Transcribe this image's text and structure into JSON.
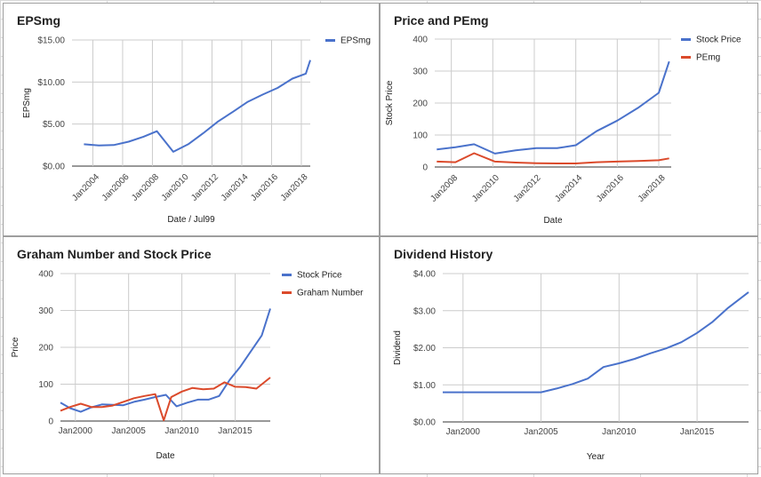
{
  "chart_data": [
    {
      "id": "eps",
      "type": "line",
      "title": "EPSmg",
      "xlabel": "Date / Jul99",
      "ylabel": "EPSmg",
      "xlim": [
        2002.6,
        2018.6
      ],
      "ylim": [
        0,
        15
      ],
      "y_ticks": [
        {
          "v": 0,
          "label": "$0.00"
        },
        {
          "v": 5,
          "label": "$5.00"
        },
        {
          "v": 10,
          "label": "$10.00"
        },
        {
          "v": 15,
          "label": "$15.00"
        }
      ],
      "x_ticks": [
        {
          "v": 2004,
          "label": "Jan2004"
        },
        {
          "v": 2006,
          "label": "Jan2006"
        },
        {
          "v": 2008,
          "label": "Jan2008"
        },
        {
          "v": 2010,
          "label": "Jan2010"
        },
        {
          "v": 2012,
          "label": "Jan2012"
        },
        {
          "v": 2014,
          "label": "Jan2014"
        },
        {
          "v": 2016,
          "label": "Jan2016"
        },
        {
          "v": 2018,
          "label": "Jan2018"
        }
      ],
      "x_tick_rotate": true,
      "legend": "right",
      "series": [
        {
          "name": "EPSmg",
          "color": "#4a72cb",
          "points": [
            [
              2003.4,
              2.6
            ],
            [
              2004.4,
              2.45
            ],
            [
              2005.4,
              2.5
            ],
            [
              2006.4,
              2.9
            ],
            [
              2007.4,
              3.5
            ],
            [
              2008.3,
              4.15
            ],
            [
              2009.4,
              1.7
            ],
            [
              2010.4,
              2.6
            ],
            [
              2011.4,
              3.9
            ],
            [
              2012.4,
              5.3
            ],
            [
              2013.4,
              6.45
            ],
            [
              2014.4,
              7.65
            ],
            [
              2015.4,
              8.5
            ],
            [
              2016.4,
              9.3
            ],
            [
              2017.4,
              10.4
            ],
            [
              2018.3,
              11.0
            ],
            [
              2018.6,
              12.6
            ]
          ]
        }
      ]
    },
    {
      "id": "pe",
      "type": "line",
      "title": "Price and PEmg",
      "xlabel": "Date",
      "ylabel": "Stock Price",
      "xlim": [
        2007.2,
        2018.6
      ],
      "ylim": [
        0,
        400
      ],
      "y_ticks": [
        {
          "v": 0,
          "label": "0"
        },
        {
          "v": 100,
          "label": "100"
        },
        {
          "v": 200,
          "label": "200"
        },
        {
          "v": 300,
          "label": "300"
        },
        {
          "v": 400,
          "label": "400"
        }
      ],
      "x_ticks": [
        {
          "v": 2008,
          "label": "Jan2008"
        },
        {
          "v": 2010,
          "label": "Jan2010"
        },
        {
          "v": 2012,
          "label": "Jan2012"
        },
        {
          "v": 2014,
          "label": "Jan2014"
        },
        {
          "v": 2016,
          "label": "Jan2016"
        },
        {
          "v": 2018,
          "label": "Jan2018"
        }
      ],
      "x_tick_rotate": true,
      "legend": "right",
      "series": [
        {
          "name": "Stock Price",
          "color": "#4a72cb",
          "points": [
            [
              2007.3,
              55
            ],
            [
              2008.2,
              62
            ],
            [
              2009.1,
              71
            ],
            [
              2010.1,
              42
            ],
            [
              2011.1,
              52
            ],
            [
              2012.1,
              59
            ],
            [
              2013.1,
              59
            ],
            [
              2014.0,
              68
            ],
            [
              2015.0,
              112
            ],
            [
              2016.0,
              145
            ],
            [
              2017.0,
              185
            ],
            [
              2018.0,
              232
            ],
            [
              2018.5,
              330
            ]
          ]
        },
        {
          "name": "PEmg",
          "color": "#db4a2b",
          "points": [
            [
              2007.3,
              17
            ],
            [
              2008.2,
              15
            ],
            [
              2009.1,
              43
            ],
            [
              2010.1,
              17
            ],
            [
              2011.1,
              14
            ],
            [
              2012.1,
              12
            ],
            [
              2013.1,
              11
            ],
            [
              2014.0,
              11
            ],
            [
              2015.0,
              15
            ],
            [
              2016.0,
              17
            ],
            [
              2017.0,
              19
            ],
            [
              2018.0,
              21
            ],
            [
              2018.5,
              27
            ]
          ]
        }
      ]
    },
    {
      "id": "graham",
      "type": "line",
      "title": "Graham Number and Stock Price",
      "xlabel": "Date",
      "ylabel": "Price",
      "xlim": [
        1998.6,
        2018.3
      ],
      "ylim": [
        0,
        400
      ],
      "y_ticks": [
        {
          "v": 0,
          "label": "0"
        },
        {
          "v": 100,
          "label": "100"
        },
        {
          "v": 200,
          "label": "200"
        },
        {
          "v": 300,
          "label": "300"
        },
        {
          "v": 400,
          "label": "400"
        }
      ],
      "x_ticks": [
        {
          "v": 2000,
          "label": "Jan2000"
        },
        {
          "v": 2005,
          "label": "Jan2005"
        },
        {
          "v": 2010,
          "label": "Jan2010"
        },
        {
          "v": 2015,
          "label": "Jan2015"
        }
      ],
      "x_tick_rotate": false,
      "legend": "right",
      "series": [
        {
          "name": "Stock Price",
          "color": "#4a72cb",
          "points": [
            [
              1998.6,
              50
            ],
            [
              1999.5,
              35
            ],
            [
              2000.5,
              25
            ],
            [
              2001.5,
              37
            ],
            [
              2002.5,
              45
            ],
            [
              2003.5,
              44
            ],
            [
              2004.5,
              43
            ],
            [
              2005.5,
              52
            ],
            [
              2006.5,
              58
            ],
            [
              2007.5,
              65
            ],
            [
              2008.5,
              71
            ],
            [
              2009.5,
              40
            ],
            [
              2010.5,
              50
            ],
            [
              2011.5,
              58
            ],
            [
              2012.5,
              58
            ],
            [
              2013.5,
              68
            ],
            [
              2014.5,
              112
            ],
            [
              2015.5,
              148
            ],
            [
              2016.5,
              190
            ],
            [
              2017.5,
              232
            ],
            [
              2018.3,
              305
            ]
          ]
        },
        {
          "name": "Graham Number",
          "color": "#db4a2b",
          "points": [
            [
              1998.6,
              28
            ],
            [
              1999.5,
              38
            ],
            [
              2000.5,
              47
            ],
            [
              2001.5,
              38
            ],
            [
              2002.5,
              38
            ],
            [
              2003.5,
              42
            ],
            [
              2004.5,
              52
            ],
            [
              2005.5,
              62
            ],
            [
              2006.5,
              68
            ],
            [
              2007.5,
              73
            ],
            [
              2008.3,
              2
            ],
            [
              2009.0,
              65
            ],
            [
              2010.0,
              80
            ],
            [
              2011.0,
              90
            ],
            [
              2012.0,
              86
            ],
            [
              2013.0,
              88
            ],
            [
              2014.0,
              105
            ],
            [
              2015.0,
              93
            ],
            [
              2016.0,
              92
            ],
            [
              2017.0,
              88
            ],
            [
              2018.3,
              118
            ]
          ]
        }
      ]
    },
    {
      "id": "dividend",
      "type": "line",
      "title": "Dividend History",
      "xlabel": "Year",
      "ylabel": "Dividend",
      "xlim": [
        1998.7,
        2018.3
      ],
      "ylim": [
        0,
        4
      ],
      "y_ticks": [
        {
          "v": 0,
          "label": "$0.00"
        },
        {
          "v": 1,
          "label": "$1.00"
        },
        {
          "v": 2,
          "label": "$2.00"
        },
        {
          "v": 3,
          "label": "$3.00"
        },
        {
          "v": 4,
          "label": "$4.00"
        }
      ],
      "x_ticks": [
        {
          "v": 2000,
          "label": "Jan2000"
        },
        {
          "v": 2005,
          "label": "Jan2005"
        },
        {
          "v": 2010,
          "label": "Jan2010"
        },
        {
          "v": 2015,
          "label": "Jan2015"
        }
      ],
      "x_tick_rotate": false,
      "legend": "none",
      "series": [
        {
          "name": "",
          "color": "#4a72cb",
          "points": [
            [
              1998.7,
              0.8
            ],
            [
              2000.0,
              0.8
            ],
            [
              2001.0,
              0.8
            ],
            [
              2002.0,
              0.8
            ],
            [
              2003.0,
              0.8
            ],
            [
              2004.0,
              0.8
            ],
            [
              2005.0,
              0.8
            ],
            [
              2006.0,
              0.9
            ],
            [
              2007.0,
              1.02
            ],
            [
              2008.0,
              1.17
            ],
            [
              2009.0,
              1.48
            ],
            [
              2010.0,
              1.58
            ],
            [
              2011.0,
              1.7
            ],
            [
              2012.0,
              1.85
            ],
            [
              2013.0,
              1.98
            ],
            [
              2014.0,
              2.15
            ],
            [
              2015.0,
              2.4
            ],
            [
              2016.0,
              2.7
            ],
            [
              2017.0,
              3.08
            ],
            [
              2018.3,
              3.5
            ]
          ]
        }
      ]
    }
  ]
}
